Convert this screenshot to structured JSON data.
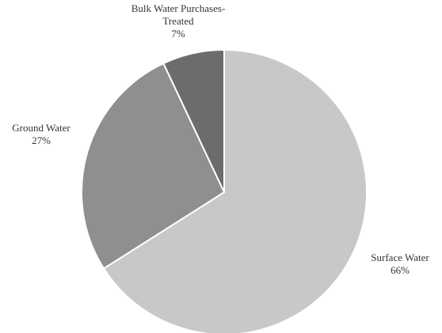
{
  "chart_data": {
    "type": "pie",
    "title": "",
    "slices": [
      {
        "label": "Surface Water",
        "label_lines": [
          "Surface Water"
        ],
        "pct_label": "66%",
        "value": 66,
        "color": "#c8c8c8"
      },
      {
        "label": "Ground Water",
        "label_lines": [
          "Ground Water"
        ],
        "pct_label": "27%",
        "value": 27,
        "color": "#8f8f8f"
      },
      {
        "label": "Bulk Water Purchases-Treated",
        "label_lines": [
          "Bulk Water Purchases-",
          "Treated"
        ],
        "pct_label": "7%",
        "value": 7,
        "color": "#6c6c6c"
      }
    ],
    "start_position": "top",
    "direction": "clockwise",
    "slice_border_color": "#ffffff",
    "legend": "none"
  }
}
